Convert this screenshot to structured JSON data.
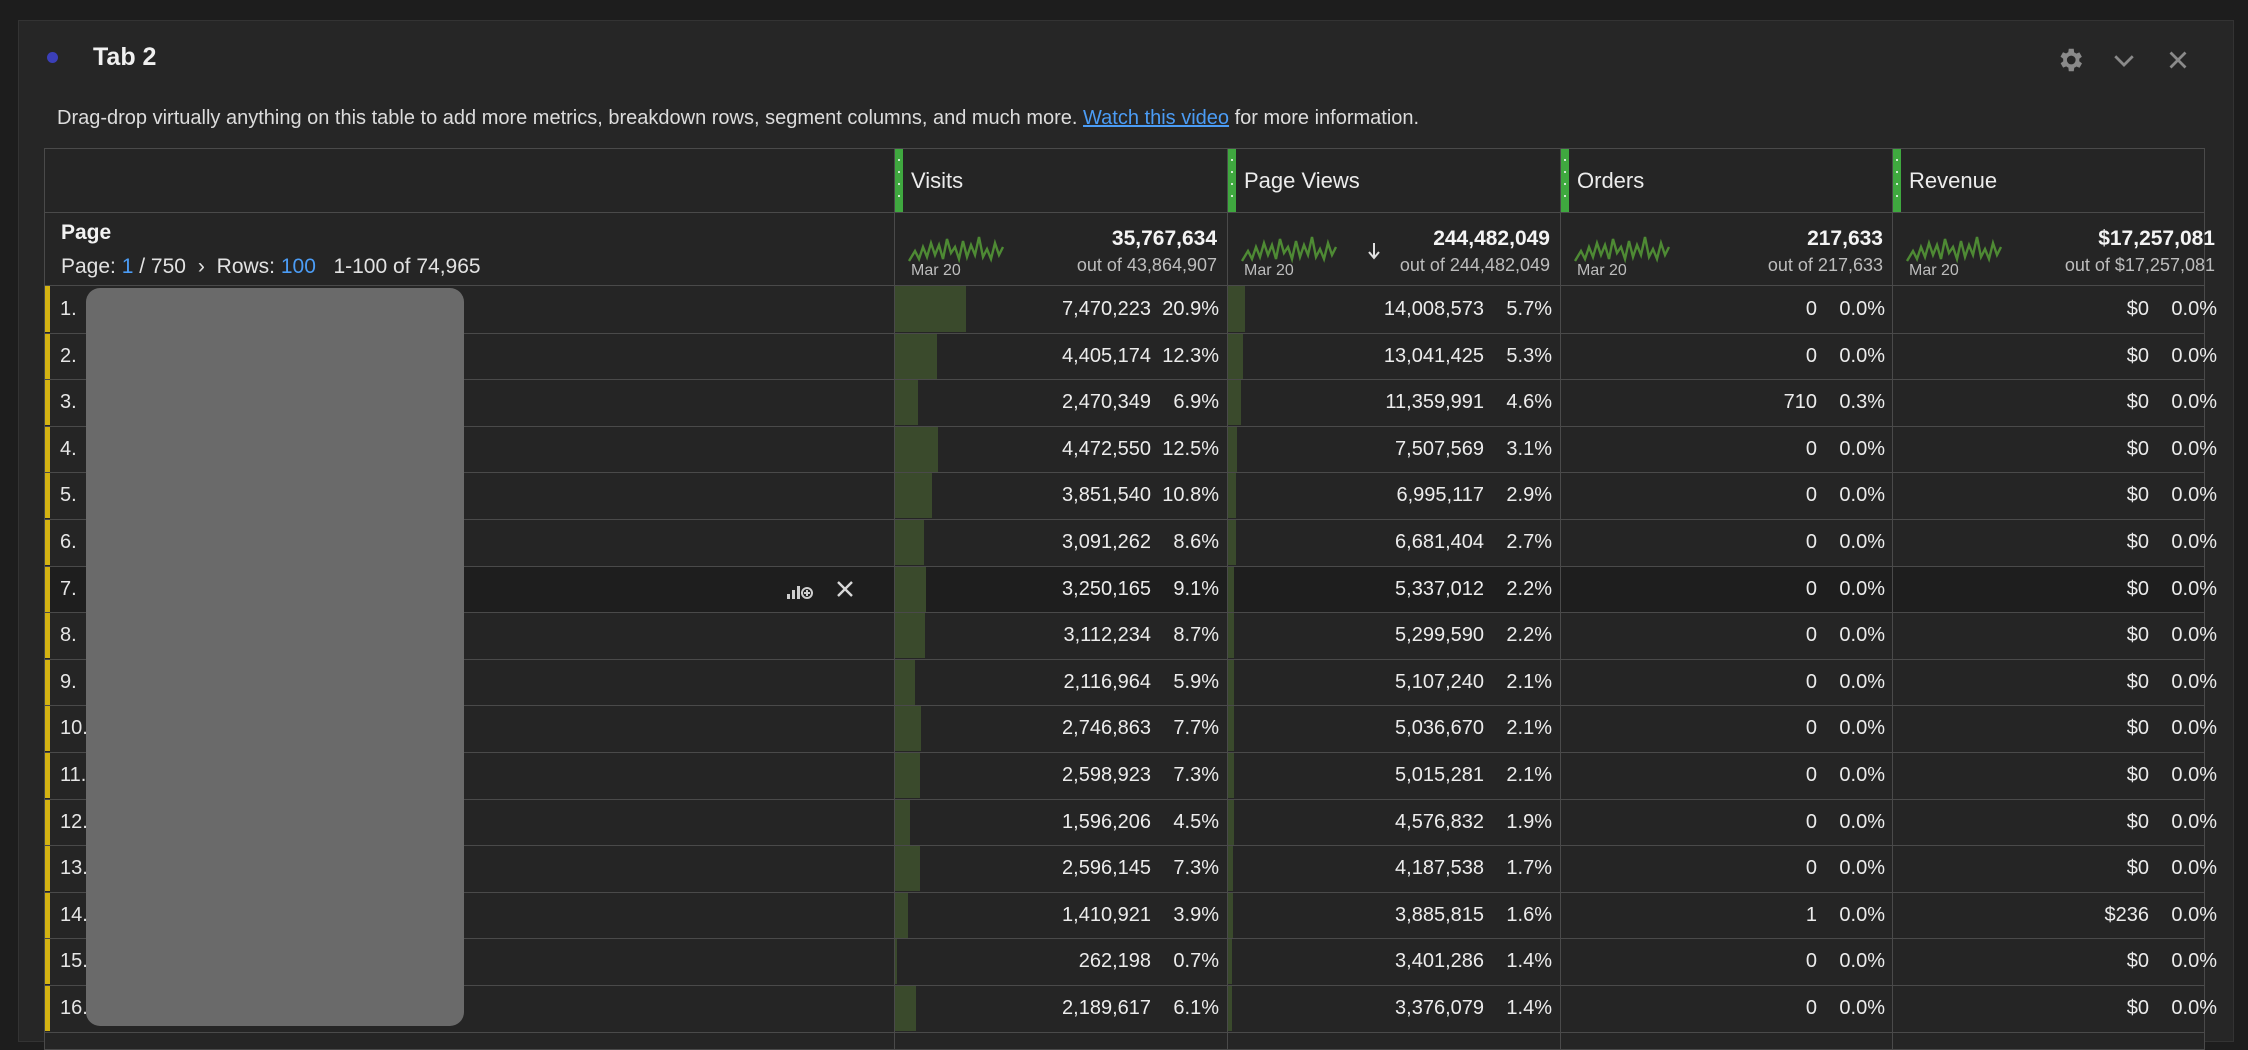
{
  "panel": {
    "title": "Tab 2",
    "description_text": "Drag-drop virtually anything on this table to add more metrics, breakdown rows, segment columns, and much more.",
    "description_link": "Watch this video",
    "description_suffix": "for more information.",
    "icons": [
      "gear-icon",
      "chevron-down-icon",
      "close-icon"
    ],
    "colors": {
      "accent_green": "#3fa83f",
      "row_marker": "#d4b312",
      "link": "#4b9cf5",
      "status_dot": "#3b3fb8"
    }
  },
  "table": {
    "dimension": {
      "label": "Page",
      "page_prefix": "Page:",
      "page_current": "1",
      "page_total": "/ 750",
      "rows_prefix": "Rows:",
      "rows_value": "100",
      "range": "1-100 of 74,965"
    },
    "columns": [
      {
        "title": "Visits",
        "total": "35,767,634",
        "out_of": "out of 43,864,907",
        "spark_date": "Mar 20",
        "sorted": false
      },
      {
        "title": "Page Views",
        "total": "244,482,049",
        "out_of": "out of 244,482,049",
        "spark_date": "Mar 20",
        "sorted": true
      },
      {
        "title": "Orders",
        "total": "217,633",
        "out_of": "out of 217,633",
        "spark_date": "Mar 20",
        "sorted": false
      },
      {
        "title": "Revenue",
        "total": "$17,257,081",
        "out_of": "out of $17,257,081",
        "spark_date": "Mar 20",
        "sorted": false
      }
    ],
    "rows": [
      {
        "idx": "1.",
        "visits": "7,470,223",
        "visits_pct": "20.9%",
        "pv": "14,008,573",
        "pv_pct": "5.7%",
        "orders": "0",
        "orders_pct": "0.0%",
        "rev": "$0",
        "rev_pct": "0.0%"
      },
      {
        "idx": "2.",
        "visits": "4,405,174",
        "visits_pct": "12.3%",
        "pv": "13,041,425",
        "pv_pct": "5.3%",
        "orders": "0",
        "orders_pct": "0.0%",
        "rev": "$0",
        "rev_pct": "0.0%"
      },
      {
        "idx": "3.",
        "visits": "2,470,349",
        "visits_pct": "6.9%",
        "pv": "11,359,991",
        "pv_pct": "4.6%",
        "orders": "710",
        "orders_pct": "0.3%",
        "rev": "$0",
        "rev_pct": "0.0%"
      },
      {
        "idx": "4.",
        "visits": "4,472,550",
        "visits_pct": "12.5%",
        "pv": "7,507,569",
        "pv_pct": "3.1%",
        "orders": "0",
        "orders_pct": "0.0%",
        "rev": "$0",
        "rev_pct": "0.0%"
      },
      {
        "idx": "5.",
        "visits": "3,851,540",
        "visits_pct": "10.8%",
        "pv": "6,995,117",
        "pv_pct": "2.9%",
        "orders": "0",
        "orders_pct": "0.0%",
        "rev": "$0",
        "rev_pct": "0.0%"
      },
      {
        "idx": "6.",
        "visits": "3,091,262",
        "visits_pct": "8.6%",
        "pv": "6,681,404",
        "pv_pct": "2.7%",
        "orders": "0",
        "orders_pct": "0.0%",
        "rev": "$0",
        "rev_pct": "0.0%"
      },
      {
        "idx": "7.",
        "visits": "3,250,165",
        "visits_pct": "9.1%",
        "pv": "5,337,012",
        "pv_pct": "2.2%",
        "orders": "0",
        "orders_pct": "0.0%",
        "rev": "$0",
        "rev_pct": "0.0%"
      },
      {
        "idx": "8.",
        "visits": "3,112,234",
        "visits_pct": "8.7%",
        "pv": "5,299,590",
        "pv_pct": "2.2%",
        "orders": "0",
        "orders_pct": "0.0%",
        "rev": "$0",
        "rev_pct": "0.0%"
      },
      {
        "idx": "9.",
        "visits": "2,116,964",
        "visits_pct": "5.9%",
        "pv": "5,107,240",
        "pv_pct": "2.1%",
        "orders": "0",
        "orders_pct": "0.0%",
        "rev": "$0",
        "rev_pct": "0.0%"
      },
      {
        "idx": "10.",
        "visits": "2,746,863",
        "visits_pct": "7.7%",
        "pv": "5,036,670",
        "pv_pct": "2.1%",
        "orders": "0",
        "orders_pct": "0.0%",
        "rev": "$0",
        "rev_pct": "0.0%"
      },
      {
        "idx": "11.",
        "visits": "2,598,923",
        "visits_pct": "7.3%",
        "pv": "5,015,281",
        "pv_pct": "2.1%",
        "orders": "0",
        "orders_pct": "0.0%",
        "rev": "$0",
        "rev_pct": "0.0%"
      },
      {
        "idx": "12.",
        "visits": "1,596,206",
        "visits_pct": "4.5%",
        "pv": "4,576,832",
        "pv_pct": "1.9%",
        "orders": "0",
        "orders_pct": "0.0%",
        "rev": "$0",
        "rev_pct": "0.0%"
      },
      {
        "idx": "13.",
        "visits": "2,596,145",
        "visits_pct": "7.3%",
        "pv": "4,187,538",
        "pv_pct": "1.7%",
        "orders": "0",
        "orders_pct": "0.0%",
        "rev": "$0",
        "rev_pct": "0.0%"
      },
      {
        "idx": "14.",
        "visits": "1,410,921",
        "visits_pct": "3.9%",
        "pv": "3,885,815",
        "pv_pct": "1.6%",
        "orders": "1",
        "orders_pct": "0.0%",
        "rev": "$236",
        "rev_pct": "0.0%"
      },
      {
        "idx": "15.",
        "visits": "262,198",
        "visits_pct": "0.7%",
        "pv": "3,401,286",
        "pv_pct": "1.4%",
        "orders": "0",
        "orders_pct": "0.0%",
        "rev": "$0",
        "rev_pct": "0.0%"
      },
      {
        "idx": "16.",
        "visits": "2,189,617",
        "visits_pct": "6.1%",
        "pv": "3,376,079",
        "pv_pct": "1.4%",
        "orders": "0",
        "orders_pct": "0.0%",
        "rev": "$0",
        "rev_pct": "0.0%"
      }
    ]
  }
}
